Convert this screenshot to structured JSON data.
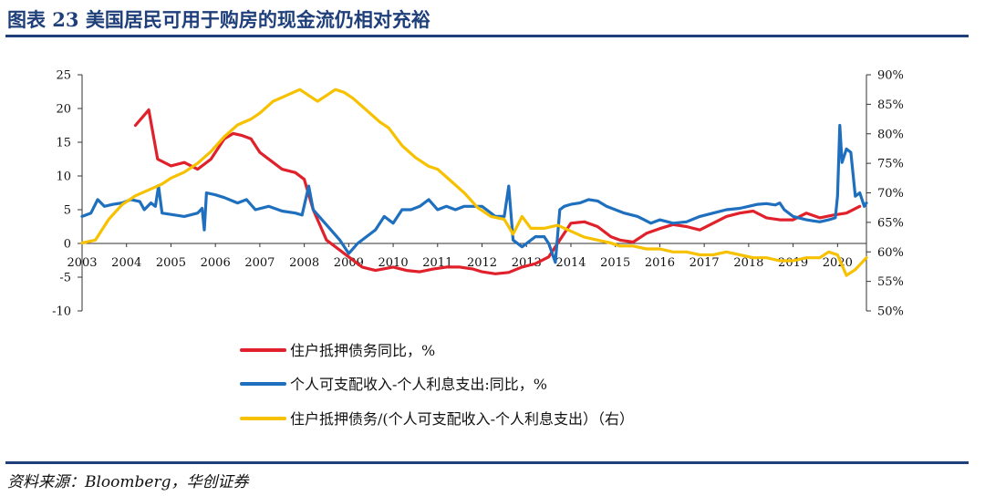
{
  "header": {
    "title": "图表 23   美国居民可用于购房的现金流仍相对充裕"
  },
  "footer": {
    "source": "资料来源：Bloomberg，华创证券"
  },
  "colors": {
    "title": "#1f3f7a",
    "red": "#e0202a",
    "blue": "#1f6fbf",
    "yellow": "#f7c100"
  },
  "chart_data": {
    "type": "line",
    "title": "美国居民可用于购房的现金流仍相对充裕",
    "x_ticks": [
      "2003",
      "2004",
      "2005",
      "2006",
      "2007",
      "2008",
      "2009",
      "2010",
      "2011",
      "2012",
      "2013",
      "2014",
      "2015",
      "2016",
      "2017",
      "2018",
      "2019",
      "2020"
    ],
    "xlim": [
      2003.0,
      2020.65
    ],
    "y_left": {
      "range": [
        -10,
        25
      ],
      "ticks": [
        "-10",
        "-5",
        "0",
        "5",
        "10",
        "15",
        "20",
        "25"
      ]
    },
    "y_right": {
      "range": [
        50,
        90
      ],
      "ticks": [
        "50%",
        "55%",
        "60%",
        "65%",
        "70%",
        "75%",
        "80%",
        "85%",
        "90%"
      ]
    },
    "series": [
      {
        "name": "住户抵押债务同比，%",
        "axis": "left",
        "color": "#e0202a",
        "x": [
          2004.2,
          2004.5,
          2004.7,
          2005.0,
          2005.3,
          2005.6,
          2005.9,
          2006.2,
          2006.4,
          2006.6,
          2006.8,
          2007.0,
          2007.3,
          2007.5,
          2007.8,
          2008.0,
          2008.2,
          2008.5,
          2008.8,
          2009.0,
          2009.3,
          2009.6,
          2010.0,
          2010.3,
          2010.6,
          2010.9,
          2011.2,
          2011.5,
          2011.8,
          2012.0,
          2012.3,
          2012.6,
          2012.9,
          2013.2,
          2013.5,
          2013.8,
          2014.0,
          2014.3,
          2014.6,
          2014.9,
          2015.1,
          2015.4,
          2015.7,
          2016.0,
          2016.3,
          2016.6,
          2016.9,
          2017.2,
          2017.5,
          2017.8,
          2018.1,
          2018.4,
          2018.7,
          2019.0,
          2019.3,
          2019.6,
          2019.9,
          2020.2,
          2020.5
        ],
        "values": [
          17.5,
          19.8,
          12.5,
          11.5,
          12.0,
          11.0,
          12.5,
          15.5,
          16.3,
          16.0,
          15.5,
          13.5,
          12.0,
          11.0,
          10.5,
          9.5,
          5.0,
          0.5,
          -1.0,
          -2.0,
          -3.5,
          -4.0,
          -3.5,
          -4.0,
          -4.2,
          -3.8,
          -3.5,
          -3.5,
          -3.8,
          -4.2,
          -4.5,
          -4.3,
          -3.5,
          -3.0,
          -2.0,
          1.0,
          3.0,
          3.2,
          2.5,
          1.0,
          0.5,
          0.2,
          1.5,
          2.2,
          2.8,
          2.5,
          2.0,
          3.0,
          4.0,
          4.5,
          4.8,
          3.8,
          3.5,
          3.5,
          4.5,
          3.8,
          4.2,
          4.5,
          5.5
        ]
      },
      {
        "name": "个人可支配收入-个人利息支出:同比，%",
        "axis": "left",
        "color": "#1f6fbf",
        "x": [
          2003.0,
          2003.2,
          2003.35,
          2003.5,
          2003.7,
          2003.9,
          2004.1,
          2004.3,
          2004.4,
          2004.55,
          2004.65,
          2004.72,
          2004.8,
          2005.0,
          2005.3,
          2005.6,
          2005.7,
          2005.75,
          2005.8,
          2006.0,
          2006.2,
          2006.5,
          2006.7,
          2006.9,
          2007.2,
          2007.5,
          2007.8,
          2007.95,
          2008.1,
          2008.2,
          2008.4,
          2008.6,
          2008.8,
          2009.0,
          2009.2,
          2009.4,
          2009.6,
          2009.8,
          2010.0,
          2010.2,
          2010.4,
          2010.6,
          2010.8,
          2011.0,
          2011.2,
          2011.4,
          2011.6,
          2011.8,
          2012.0,
          2012.1,
          2012.3,
          2012.5,
          2012.6,
          2012.7,
          2012.9,
          2013.0,
          2013.2,
          2013.4,
          2013.5,
          2013.65,
          2013.75,
          2013.85,
          2014.0,
          2014.2,
          2014.4,
          2014.6,
          2014.8,
          2015.0,
          2015.2,
          2015.5,
          2015.8,
          2016.0,
          2016.3,
          2016.6,
          2016.9,
          2017.2,
          2017.5,
          2017.8,
          2018.0,
          2018.2,
          2018.4,
          2018.6,
          2018.7,
          2018.8,
          2019.0,
          2019.3,
          2019.6,
          2019.8,
          2019.95,
          2020.0,
          2020.05,
          2020.1,
          2020.2,
          2020.3,
          2020.4,
          2020.5,
          2020.6,
          2020.65
        ],
        "values": [
          4.0,
          4.5,
          6.5,
          5.5,
          5.8,
          6.0,
          6.5,
          6.2,
          5.0,
          6.0,
          5.5,
          8.5,
          4.5,
          4.3,
          4.0,
          4.5,
          5.2,
          2.0,
          7.5,
          7.2,
          6.8,
          6.0,
          6.5,
          5.0,
          5.5,
          4.8,
          4.5,
          4.2,
          8.5,
          5.0,
          3.5,
          2.0,
          0.5,
          -1.5,
          0.0,
          1.0,
          2.0,
          4.0,
          3.0,
          5.0,
          5.0,
          5.5,
          6.5,
          5.0,
          5.5,
          5.0,
          5.5,
          5.5,
          5.5,
          5.0,
          4.0,
          4.0,
          8.5,
          0.5,
          -0.5,
          0.0,
          1.0,
          1.0,
          0.0,
          -2.8,
          5.0,
          5.5,
          5.8,
          6.0,
          6.5,
          6.3,
          5.5,
          5.0,
          4.5,
          4.0,
          3.0,
          3.5,
          3.0,
          3.2,
          4.0,
          4.5,
          5.0,
          5.2,
          5.5,
          5.8,
          5.9,
          5.7,
          6.0,
          5.0,
          4.0,
          3.5,
          3.2,
          3.5,
          3.8,
          7.0,
          17.5,
          12.0,
          14.0,
          13.5,
          7.0,
          7.5,
          5.5,
          6.0
        ]
      },
      {
        "name": "住户抵押债务/(个人可支配收入-个人利息支出）（右）",
        "axis": "right",
        "color": "#f7c100",
        "x": [
          2003.0,
          2003.3,
          2003.6,
          2003.9,
          2004.2,
          2004.5,
          2004.8,
          2005.0,
          2005.3,
          2005.6,
          2005.9,
          2006.2,
          2006.5,
          2006.8,
          2007.0,
          2007.3,
          2007.6,
          2007.9,
          2008.1,
          2008.3,
          2008.5,
          2008.7,
          2008.9,
          2009.1,
          2009.4,
          2009.7,
          2009.9,
          2010.2,
          2010.5,
          2010.8,
          2011.0,
          2011.3,
          2011.6,
          2011.9,
          2012.2,
          2012.5,
          2012.7,
          2012.9,
          2013.1,
          2013.4,
          2013.7,
          2014.0,
          2014.3,
          2014.6,
          2014.9,
          2015.1,
          2015.4,
          2015.7,
          2016.0,
          2016.3,
          2016.6,
          2016.9,
          2017.2,
          2017.5,
          2017.8,
          2018.1,
          2018.4,
          2018.7,
          2019.0,
          2019.3,
          2019.6,
          2019.8,
          2020.0,
          2020.2,
          2020.4,
          2020.65
        ],
        "values": [
          61.5,
          62.0,
          65.5,
          68.0,
          69.5,
          70.5,
          71.5,
          72.5,
          73.5,
          75.0,
          77.0,
          79.5,
          81.5,
          82.5,
          83.5,
          85.5,
          86.5,
          87.5,
          86.5,
          85.5,
          86.5,
          87.5,
          87.0,
          86.0,
          84.0,
          82.0,
          81.0,
          78.0,
          76.0,
          74.5,
          74.0,
          72.0,
          70.0,
          67.5,
          66.0,
          65.5,
          63.0,
          66.0,
          64.0,
          64.0,
          64.5,
          63.5,
          62.5,
          62.0,
          61.5,
          61.0,
          61.0,
          60.5,
          60.5,
          60.0,
          60.0,
          59.5,
          59.5,
          60.0,
          59.5,
          59.0,
          59.0,
          58.5,
          58.5,
          59.0,
          59.0,
          60.0,
          59.5,
          56.0,
          57.0,
          59.0
        ]
      }
    ]
  }
}
